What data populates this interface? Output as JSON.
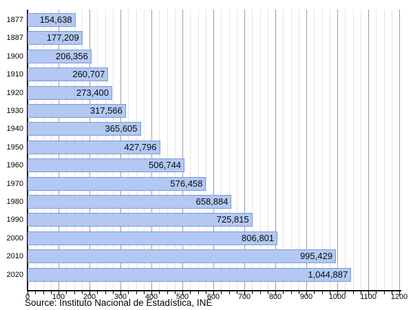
{
  "chart_data": {
    "type": "bar",
    "orientation": "horizontal",
    "title": "",
    "categories": [
      "1877",
      "1887",
      "1900",
      "1910",
      "1920",
      "1930",
      "1940",
      "1950",
      "1960",
      "1970",
      "1980",
      "1990",
      "2000",
      "2010",
      "2020"
    ],
    "values": [
      154638,
      177209,
      206356,
      260707,
      273400,
      317566,
      365605,
      427796,
      506744,
      576458,
      658884,
      725815,
      806801,
      995429,
      1044887
    ],
    "value_labels": [
      "154,638",
      "177,209",
      "206,356",
      "260,707",
      "273,400",
      "317,566",
      "365,605",
      "427,796",
      "506,744",
      "576,458",
      "658,884",
      "725,815",
      "806,801",
      "995,429",
      "1,044,887"
    ],
    "x_axis": {
      "min": 0,
      "max": 1200,
      "major_step": 100,
      "minor_step": 25,
      "tick_labels": [
        "0",
        "100",
        "200",
        "300",
        "400",
        "500",
        "600",
        "700",
        "800",
        "900",
        "1000",
        "1100",
        "1200"
      ],
      "value_scale_divisor": 1000
    },
    "grid": "major and minor vertical gridlines",
    "legend_position": "none",
    "source": "Source: Instituto Nacional de Estadística, INE",
    "colors": {
      "bar_fill": "#b3c8f2",
      "bar_border": "#7e98d8",
      "major_grid": "#9d9d9d",
      "minor_grid": "#e4e4e4",
      "axis": "#000000",
      "text": "#000000"
    }
  }
}
